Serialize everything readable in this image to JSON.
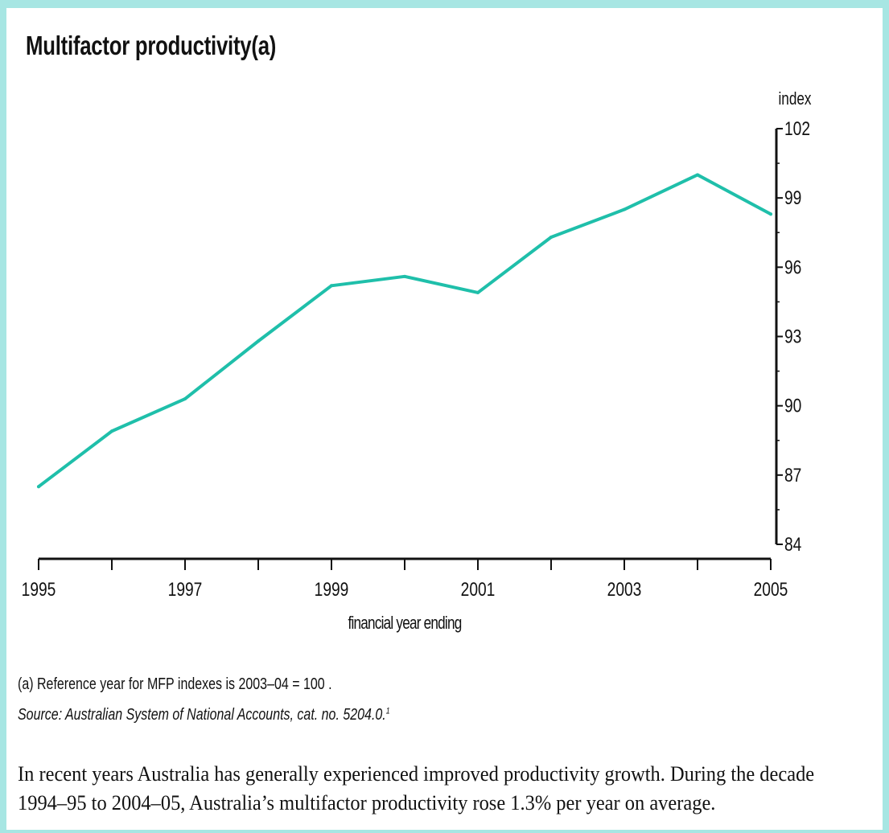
{
  "chart_data": {
    "type": "line",
    "title": "Multifactor productivity(a)",
    "xlabel": "financial year ending",
    "ylabel": "index",
    "x_tick_labels": [
      "1995",
      "1997",
      "1999",
      "2001",
      "2003",
      "2005"
    ],
    "xlim": [
      1995,
      2005
    ],
    "ylim": [
      84,
      102
    ],
    "y_ticks": [
      84,
      87,
      90,
      93,
      96,
      99,
      102
    ],
    "y_axis_side": "right",
    "grid": false,
    "line_color": "#1fbfaa",
    "series": [
      {
        "x": [
          1995,
          1996,
          1997,
          1998,
          1999,
          2000,
          2001,
          2002,
          2003,
          2004,
          2005
        ],
        "values": [
          86.5,
          88.9,
          90.3,
          92.8,
          95.2,
          95.6,
          94.9,
          97.3,
          98.5,
          100.0,
          98.3
        ]
      }
    ]
  },
  "footnote": "(a) Reference year for MFP indexes is 2003–04 = 100 .",
  "source": {
    "text": "Source: Australian System of National Accounts, cat. no. 5204.0.",
    "superscript": "1"
  },
  "body": {
    "line1": "In recent years Australia has generally experienced improved productivity growth. During the decade",
    "line2": "1994–95 to 2004–05, Australia’s multifactor productivity rose 1.3% per year on average."
  },
  "colors": {
    "border": "#a7e6e3"
  }
}
